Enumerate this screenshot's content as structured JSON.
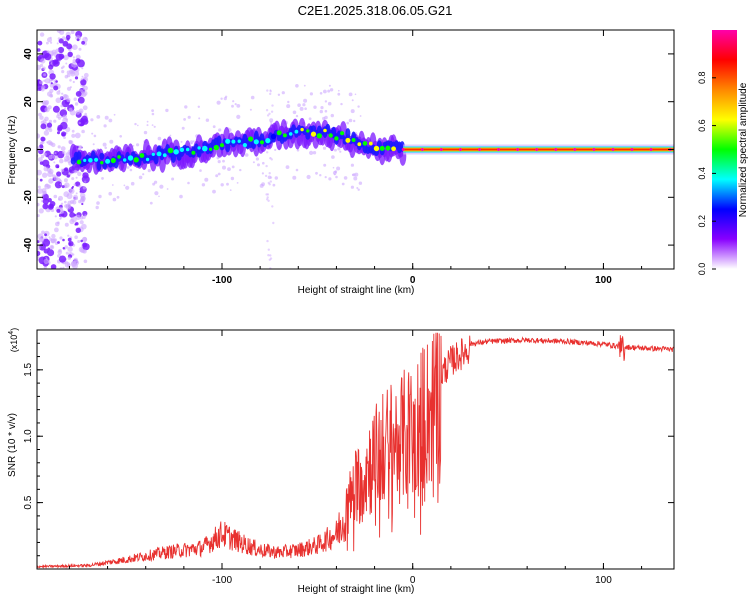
{
  "title": "C2E1.2025.318.06.05.G21",
  "chart_data": [
    {
      "type": "heatmap",
      "name": "spectrogram",
      "xlabel": "Height of straight line (km)",
      "ylabel": "Frequency (Hz)",
      "xlim": [
        -197,
        137
      ],
      "ylim": [
        -50,
        50
      ],
      "x_ticks": [
        -100,
        0,
        100
      ],
      "y_ticks": [
        -40,
        -20,
        0,
        20,
        40
      ],
      "colorbar": {
        "label": "Normalized spectral amplitude",
        "range": [
          0,
          1
        ],
        "ticks": [
          "0.0",
          "0.2",
          "0.4",
          "0.6",
          "0.8"
        ],
        "tick_values": [
          0.0,
          0.2,
          0.4,
          0.6,
          0.8
        ],
        "stops": [
          "#ffffff",
          "#8800ff",
          "#0000ff",
          "#00ffff",
          "#00ff00",
          "#ffff00",
          "#ff8800",
          "#ff0000",
          "#ff00aa"
        ]
      },
      "ridge": [
        {
          "x": -180,
          "f": -4
        },
        {
          "x": -160,
          "f": -5
        },
        {
          "x": -140,
          "f": -3
        },
        {
          "x": -120,
          "f": -1
        },
        {
          "x": -100,
          "f": 2
        },
        {
          "x": -80,
          "f": 4
        },
        {
          "x": -60,
          "f": 7
        },
        {
          "x": -45,
          "f": 7
        },
        {
          "x": -35,
          "f": 5
        },
        {
          "x": -25,
          "f": 2
        },
        {
          "x": -15,
          "f": 0
        },
        {
          "x": 0,
          "f": 0
        },
        {
          "x": 137,
          "f": 0
        }
      ]
    },
    {
      "type": "line",
      "name": "snr",
      "xlabel": "Height of straight line (km)",
      "ylabel": "SNR (10 * v/v)",
      "y_multiplier": "(x10",
      "y_exponent": "4",
      "y_multiplier_close": ")",
      "xlim": [
        -197,
        137
      ],
      "ylim": [
        0,
        1.8
      ],
      "x_ticks": [
        -100,
        0,
        100
      ],
      "y_ticks": [
        0.5,
        1.0,
        1.5
      ],
      "y_tick_labels": [
        "0.5",
        "1.0",
        "1.5"
      ],
      "color": "#e8312f",
      "envelope": [
        {
          "x": -197,
          "y": 0.02
        },
        {
          "x": -170,
          "y": 0.03
        },
        {
          "x": -150,
          "y": 0.08
        },
        {
          "x": -130,
          "y": 0.14
        },
        {
          "x": -110,
          "y": 0.18
        },
        {
          "x": -100,
          "y": 0.3
        },
        {
          "x": -90,
          "y": 0.22
        },
        {
          "x": -80,
          "y": 0.16
        },
        {
          "x": -70,
          "y": 0.14
        },
        {
          "x": -60,
          "y": 0.16
        },
        {
          "x": -50,
          "y": 0.2
        },
        {
          "x": -40,
          "y": 0.3
        },
        {
          "x": -35,
          "y": 0.5
        },
        {
          "x": -30,
          "y": 0.7
        },
        {
          "x": -25,
          "y": 0.85
        },
        {
          "x": -20,
          "y": 0.95
        },
        {
          "x": -15,
          "y": 1.05
        },
        {
          "x": -10,
          "y": 1.1
        },
        {
          "x": -5,
          "y": 1.15
        },
        {
          "x": 0,
          "y": 1.2
        },
        {
          "x": 5,
          "y": 1.3
        },
        {
          "x": 10,
          "y": 1.4
        },
        {
          "x": 20,
          "y": 1.6
        },
        {
          "x": 30,
          "y": 1.7
        },
        {
          "x": 40,
          "y": 1.72
        },
        {
          "x": 60,
          "y": 1.73
        },
        {
          "x": 80,
          "y": 1.72
        },
        {
          "x": 100,
          "y": 1.7
        },
        {
          "x": 110,
          "y": 1.68
        },
        {
          "x": 120,
          "y": 1.67
        },
        {
          "x": 137,
          "y": 1.66
        }
      ]
    }
  ]
}
